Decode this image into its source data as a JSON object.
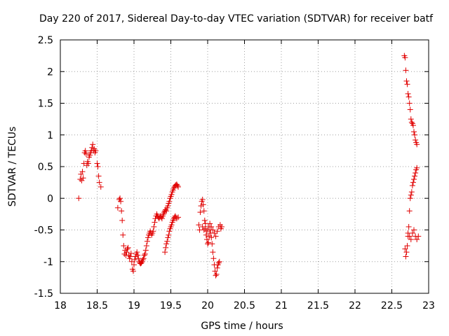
{
  "chart_data": {
    "type": "scatter",
    "title": "Day 220 of 2017, Sidereal Day-to-day VTEC variation (SDTVAR) for receiver batf",
    "xlabel": "GPS time / hours",
    "ylabel": "SDTVAR / TECUs",
    "xlim": [
      18,
      23
    ],
    "ylim": [
      -1.5,
      2.5
    ],
    "xticks": [
      18,
      18.5,
      19,
      19.5,
      20,
      20.5,
      21,
      21.5,
      22,
      22.5,
      23
    ],
    "yticks": [
      -1.5,
      -1,
      -0.5,
      0,
      0.5,
      1,
      1.5,
      2,
      2.5
    ],
    "xtick_labels": [
      "18",
      "18.5",
      "19",
      "19.5",
      "20",
      "20.5",
      "21",
      "21.5",
      "22",
      "22.5",
      "23"
    ],
    "ytick_labels": [
      "-1.5",
      "-1",
      "-0.5",
      "0",
      "0.5",
      "1",
      "1.5",
      "2",
      "2.5"
    ],
    "grid": true,
    "marker": "+",
    "marker_color": "#e00000",
    "series": [
      {
        "name": "SDTVAR",
        "points": [
          [
            18.25,
            0.0
          ],
          [
            18.27,
            0.3
          ],
          [
            18.28,
            0.38
          ],
          [
            18.29,
            0.28
          ],
          [
            18.3,
            0.42
          ],
          [
            18.31,
            0.32
          ],
          [
            18.32,
            0.55
          ],
          [
            18.33,
            0.72
          ],
          [
            18.34,
            0.75
          ],
          [
            18.35,
            0.7
          ],
          [
            18.36,
            0.52
          ],
          [
            18.37,
            0.58
          ],
          [
            18.38,
            0.55
          ],
          [
            18.39,
            0.65
          ],
          [
            18.4,
            0.68
          ],
          [
            18.41,
            0.72
          ],
          [
            18.42,
            0.75
          ],
          [
            18.43,
            0.8
          ],
          [
            18.44,
            0.85
          ],
          [
            18.45,
            0.75
          ],
          [
            18.46,
            0.78
          ],
          [
            18.47,
            0.72
          ],
          [
            18.48,
            0.75
          ],
          [
            18.5,
            0.55
          ],
          [
            18.51,
            0.5
          ],
          [
            18.52,
            0.35
          ],
          [
            18.53,
            0.25
          ],
          [
            18.55,
            0.18
          ],
          [
            18.78,
            -0.15
          ],
          [
            18.8,
            -0.02
          ],
          [
            18.81,
            0.0
          ],
          [
            18.82,
            -0.05
          ],
          [
            18.83,
            -0.2
          ],
          [
            18.84,
            -0.35
          ],
          [
            18.85,
            -0.58
          ],
          [
            18.86,
            -0.75
          ],
          [
            18.87,
            -0.88
          ],
          [
            18.88,
            -0.82
          ],
          [
            18.89,
            -0.9
          ],
          [
            18.9,
            -0.85
          ],
          [
            18.91,
            -0.8
          ],
          [
            18.92,
            -0.78
          ],
          [
            18.93,
            -0.9
          ],
          [
            18.94,
            -0.95
          ],
          [
            18.95,
            -0.92
          ],
          [
            18.96,
            -0.87
          ],
          [
            18.97,
            -1.0
          ],
          [
            18.98,
            -1.12
          ],
          [
            18.99,
            -1.15
          ],
          [
            19.0,
            -1.05
          ],
          [
            19.01,
            -0.97
          ],
          [
            19.02,
            -0.92
          ],
          [
            19.03,
            -0.88
          ],
          [
            19.04,
            -0.85
          ],
          [
            19.05,
            -0.9
          ],
          [
            19.06,
            -0.95
          ],
          [
            19.07,
            -1.0
          ],
          [
            19.08,
            -1.02
          ],
          [
            19.09,
            -1.03
          ],
          [
            19.1,
            -1.02
          ],
          [
            19.11,
            -1.0
          ],
          [
            19.12,
            -0.97
          ],
          [
            19.13,
            -0.95
          ],
          [
            19.14,
            -0.9
          ],
          [
            19.15,
            -0.88
          ],
          [
            19.16,
            -0.82
          ],
          [
            19.17,
            -0.75
          ],
          [
            19.18,
            -0.68
          ],
          [
            19.19,
            -0.62
          ],
          [
            19.2,
            -0.58
          ],
          [
            19.21,
            -0.55
          ],
          [
            19.22,
            -0.52
          ],
          [
            19.23,
            -0.55
          ],
          [
            19.24,
            -0.58
          ],
          [
            19.25,
            -0.55
          ],
          [
            19.26,
            -0.52
          ],
          [
            19.27,
            -0.45
          ],
          [
            19.28,
            -0.38
          ],
          [
            19.29,
            -0.32
          ],
          [
            19.3,
            -0.28
          ],
          [
            19.31,
            -0.25
          ],
          [
            19.32,
            -0.28
          ],
          [
            19.33,
            -0.3
          ],
          [
            19.34,
            -0.32
          ],
          [
            19.35,
            -0.3
          ],
          [
            19.36,
            -0.28
          ],
          [
            19.37,
            -0.3
          ],
          [
            19.38,
            -0.32
          ],
          [
            19.39,
            -0.28
          ],
          [
            19.4,
            -0.25
          ],
          [
            19.41,
            -0.22
          ],
          [
            19.42,
            -0.2
          ],
          [
            19.43,
            -0.18
          ],
          [
            19.44,
            -0.2
          ],
          [
            19.45,
            -0.15
          ],
          [
            19.46,
            -0.12
          ],
          [
            19.47,
            -0.08
          ],
          [
            19.48,
            -0.05
          ],
          [
            19.42,
            -0.85
          ],
          [
            19.43,
            -0.78
          ],
          [
            19.44,
            -0.72
          ],
          [
            19.45,
            -0.68
          ],
          [
            19.46,
            -0.62
          ],
          [
            19.47,
            -0.58
          ],
          [
            19.48,
            -0.52
          ],
          [
            19.49,
            -0.48
          ],
          [
            19.5,
            -0.45
          ],
          [
            19.51,
            -0.42
          ],
          [
            19.52,
            -0.38
          ],
          [
            19.53,
            -0.35
          ],
          [
            19.54,
            -0.32
          ],
          [
            19.55,
            -0.3
          ],
          [
            19.56,
            -0.28
          ],
          [
            19.57,
            -0.3
          ],
          [
            19.49,
            0.0
          ],
          [
            19.5,
            0.03
          ],
          [
            19.51,
            0.06
          ],
          [
            19.52,
            0.1
          ],
          [
            19.53,
            0.13
          ],
          [
            19.54,
            0.16
          ],
          [
            19.55,
            0.18
          ],
          [
            19.56,
            0.2
          ],
          [
            19.57,
            0.21
          ],
          [
            19.58,
            0.22
          ],
          [
            19.59,
            0.2
          ],
          [
            19.6,
            0.18
          ],
          [
            19.58,
            -0.32
          ],
          [
            19.6,
            -0.3
          ],
          [
            19.88,
            -0.42
          ],
          [
            19.89,
            -0.5
          ],
          [
            19.9,
            -0.22
          ],
          [
            19.91,
            -0.12
          ],
          [
            19.92,
            -0.05
          ],
          [
            19.93,
            -0.02
          ],
          [
            19.94,
            -0.1
          ],
          [
            19.95,
            -0.2
          ],
          [
            19.96,
            -0.35
          ],
          [
            19.97,
            -0.48
          ],
          [
            19.98,
            -0.58
          ],
          [
            19.99,
            -0.65
          ],
          [
            20.0,
            -0.72
          ],
          [
            20.01,
            -0.7
          ],
          [
            20.02,
            -0.6
          ],
          [
            20.03,
            -0.5
          ],
          [
            20.04,
            -0.55
          ],
          [
            20.05,
            -0.62
          ],
          [
            20.06,
            -0.72
          ],
          [
            20.07,
            -0.85
          ],
          [
            20.08,
            -0.95
          ],
          [
            20.09,
            -1.05
          ],
          [
            20.1,
            -1.15
          ],
          [
            20.11,
            -1.22
          ],
          [
            20.12,
            -1.2
          ],
          [
            20.13,
            -1.1
          ],
          [
            20.14,
            -1.05
          ],
          [
            20.15,
            -1.02
          ],
          [
            20.16,
            -1.0
          ],
          [
            19.93,
            -0.45
          ],
          [
            19.95,
            -0.5
          ],
          [
            19.97,
            -0.4
          ],
          [
            19.99,
            -0.52
          ],
          [
            20.01,
            -0.45
          ],
          [
            20.03,
            -0.4
          ],
          [
            20.05,
            -0.45
          ],
          [
            20.07,
            -0.5
          ],
          [
            20.09,
            -0.55
          ],
          [
            20.11,
            -0.6
          ],
          [
            20.13,
            -0.52
          ],
          [
            20.15,
            -0.45
          ],
          [
            20.17,
            -0.42
          ],
          [
            20.18,
            -0.48
          ],
          [
            20.19,
            -0.45
          ],
          [
            22.67,
            2.25
          ],
          [
            22.68,
            2.22
          ],
          [
            22.69,
            2.02
          ],
          [
            22.7,
            1.85
          ],
          [
            22.71,
            1.8
          ],
          [
            22.72,
            1.65
          ],
          [
            22.73,
            1.6
          ],
          [
            22.74,
            1.5
          ],
          [
            22.75,
            1.4
          ],
          [
            22.76,
            1.25
          ],
          [
            22.77,
            1.2
          ],
          [
            22.78,
            1.18
          ],
          [
            22.79,
            1.15
          ],
          [
            22.8,
            1.05
          ],
          [
            22.81,
            1.0
          ],
          [
            22.82,
            0.92
          ],
          [
            22.83,
            0.88
          ],
          [
            22.84,
            0.85
          ],
          [
            22.68,
            -0.8
          ],
          [
            22.69,
            -0.92
          ],
          [
            22.7,
            -0.85
          ],
          [
            22.71,
            -0.75
          ],
          [
            22.72,
            -0.6
          ],
          [
            22.73,
            -0.45
          ],
          [
            22.74,
            -0.2
          ],
          [
            22.75,
            0.0
          ],
          [
            22.76,
            0.05
          ],
          [
            22.77,
            0.1
          ],
          [
            22.78,
            0.2
          ],
          [
            22.79,
            0.25
          ],
          [
            22.8,
            0.3
          ],
          [
            22.81,
            0.35
          ],
          [
            22.82,
            0.4
          ],
          [
            22.83,
            0.45
          ],
          [
            22.84,
            0.48
          ],
          [
            22.72,
            -0.55
          ],
          [
            22.74,
            -0.6
          ],
          [
            22.76,
            -0.65
          ],
          [
            22.78,
            -0.55
          ],
          [
            22.8,
            -0.5
          ],
          [
            22.82,
            -0.6
          ],
          [
            22.84,
            -0.65
          ],
          [
            22.86,
            -0.6
          ]
        ]
      }
    ]
  }
}
